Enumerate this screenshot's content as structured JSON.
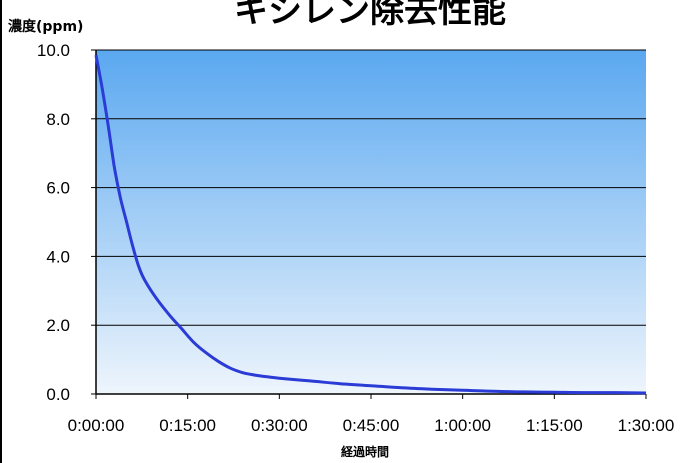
{
  "chart_data": {
    "type": "line",
    "title": "キシレン除去性能",
    "ylabel": "濃度(ppm)",
    "xlabel": "経過時間",
    "x_tick_labels": [
      "0:00:00",
      "0:15:00",
      "0:30:00",
      "0:45:00",
      "1:00:00",
      "1:15:00",
      "1:30:00"
    ],
    "y_tick_labels": [
      "0.0",
      "2.0",
      "4.0",
      "6.0",
      "8.0",
      "10.0"
    ],
    "xlim": [
      "0:00:00",
      "1:30:00"
    ],
    "ylim": [
      0,
      10
    ],
    "grid": true,
    "series": [
      {
        "color": "#2a3bd6",
        "x": [
          "0:00:00",
          "0:01:00",
          "0:02:00",
          "0:03:00",
          "0:04:00",
          "0:05:00",
          "0:06:00",
          "0:07:00",
          "0:08:00",
          "0:10:00",
          "0:12:00",
          "0:14:00",
          "0:16:00",
          "0:18:00",
          "0:20:00",
          "0:22:00",
          "0:24:00",
          "0:26:00",
          "0:28:00",
          "0:30:00",
          "0:35:00",
          "0:40:00",
          "0:45:00",
          "0:50:00",
          "0:55:00",
          "1:00:00",
          "1:05:00",
          "1:10:00",
          "1:15:00",
          "1:20:00",
          "1:25:00",
          "1:30:00"
        ],
        "y": [
          9.85,
          8.9,
          7.8,
          6.6,
          5.7,
          5.0,
          4.3,
          3.7,
          3.3,
          2.75,
          2.3,
          1.9,
          1.5,
          1.2,
          0.95,
          0.75,
          0.62,
          0.55,
          0.5,
          0.46,
          0.38,
          0.3,
          0.24,
          0.18,
          0.14,
          0.11,
          0.08,
          0.06,
          0.05,
          0.04,
          0.04,
          0.03
        ]
      }
    ]
  },
  "colors": {
    "plot_bg_top": "#5aa8f0",
    "plot_bg_bottom": "#eef5fc",
    "gridline": "#000000"
  }
}
